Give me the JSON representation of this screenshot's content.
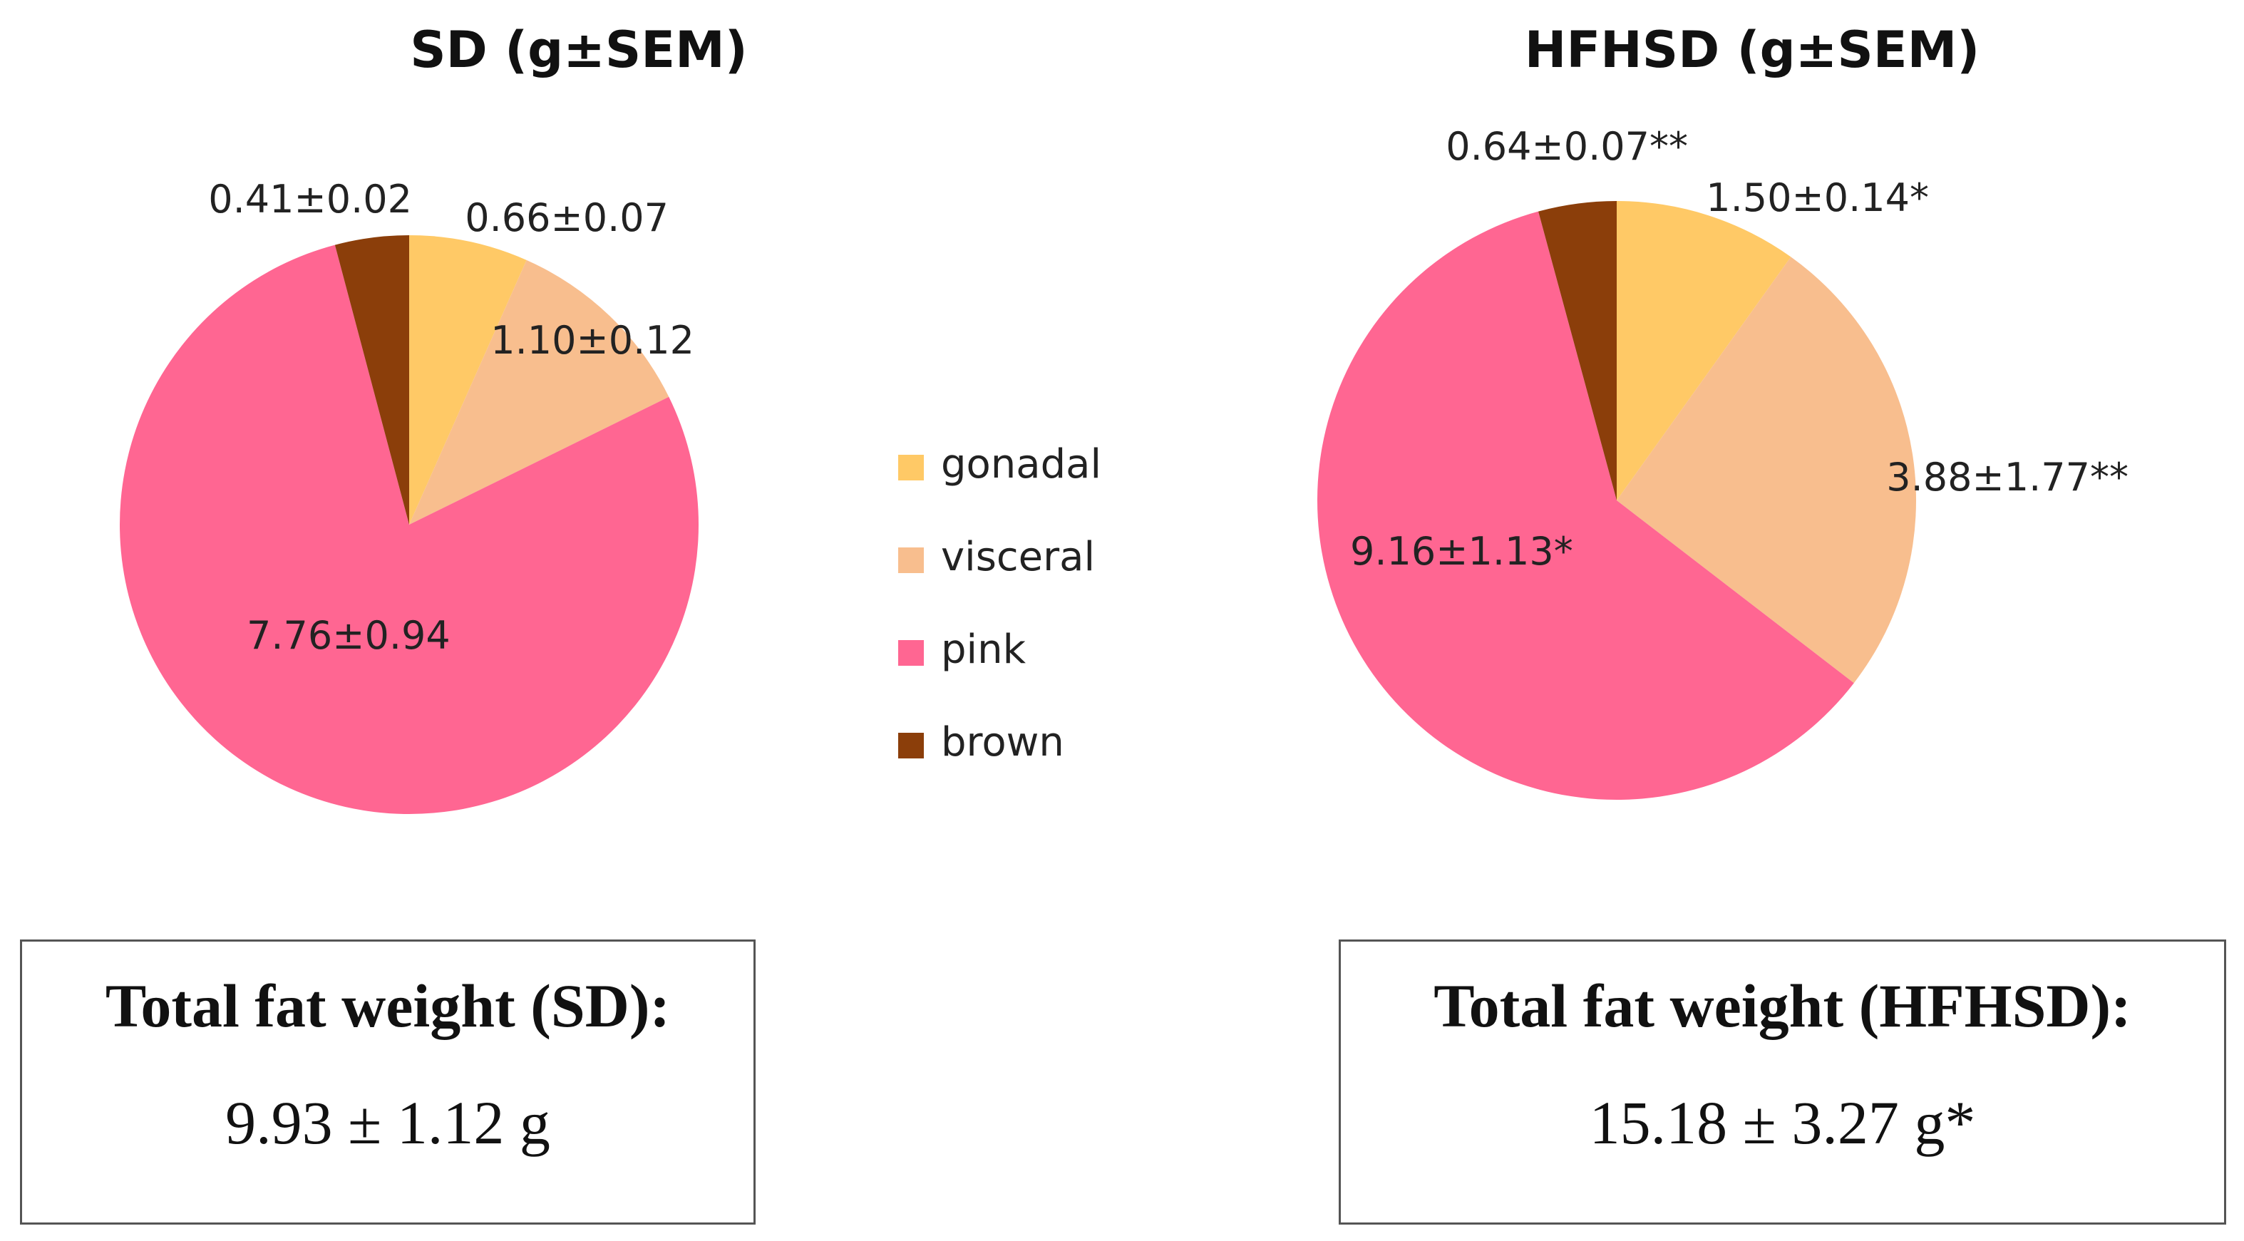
{
  "chart_data": [
    {
      "type": "pie",
      "title": "SD (g±SEM)",
      "categories": [
        "gonadal",
        "visceral",
        "pink",
        "brown"
      ],
      "values": [
        0.66,
        1.1,
        7.76,
        0.41
      ],
      "labels": [
        "0.66±0.07",
        "1.10±0.12",
        "7.76±0.94",
        "0.41±0.02"
      ],
      "colors": [
        "#FFC966",
        "#F8BE8E",
        "#FF6692",
        "#8B3E0A"
      ],
      "start_angle": "12 o'clock",
      "direction": "clockwise"
    },
    {
      "type": "pie",
      "title": "HFHSD (g±SEM)",
      "categories": [
        "gonadal",
        "visceral",
        "pink",
        "brown"
      ],
      "values": [
        1.5,
        3.88,
        9.16,
        0.64
      ],
      "labels": [
        "1.50±0.14*",
        "3.88±1.77**",
        "9.16±1.13*",
        "0.64±0.07**"
      ],
      "colors": [
        "#FFC966",
        "#F8BE8E",
        "#FF6692",
        "#8B3E0A"
      ],
      "start_angle": "12 o'clock",
      "direction": "clockwise"
    }
  ],
  "legend": {
    "placement": "center",
    "items": [
      {
        "label": "gonadal",
        "color": "#FFC966"
      },
      {
        "label": "visceral",
        "color": "#F8BE8E"
      },
      {
        "label": "pink",
        "color": "#FF6692"
      },
      {
        "label": "brown",
        "color": "#8B3E0A"
      }
    ]
  },
  "totals": {
    "sd": {
      "title": "Total fat weight (SD):",
      "value": "9.93 ± 1.12 g"
    },
    "hfhsd": {
      "title": "Total fat weight (HFHSD):",
      "value": "15.18 ± 3.27 g*"
    }
  }
}
